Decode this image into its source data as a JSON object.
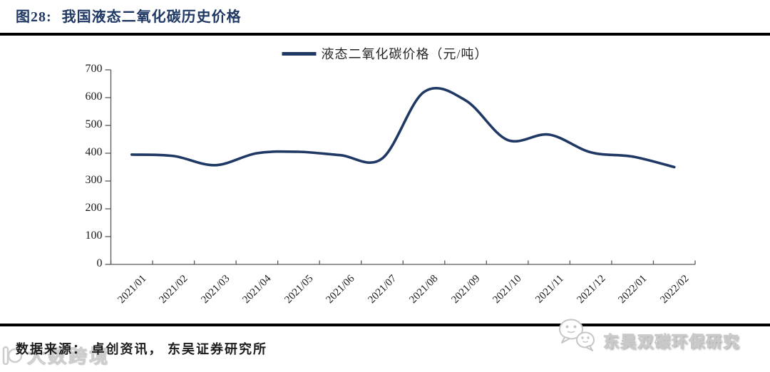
{
  "figure": {
    "label": "图28:",
    "title": "我国液态二氧化碳历史价格"
  },
  "legend": {
    "label": "液态二氧化碳价格（元/吨）"
  },
  "chart_data": {
    "type": "line",
    "smooth": true,
    "grid": false,
    "legend_position": "top-center",
    "title": "我国液态二氧化碳历史价格",
    "xlabel": "",
    "ylabel": "",
    "ylim": [
      0,
      700
    ],
    "ytick_step": 100,
    "x": [
      "2021/01",
      "2021/02",
      "2021/03",
      "2021/04",
      "2021/05",
      "2021/06",
      "2021/07",
      "2021/08",
      "2021/09",
      "2021/10",
      "2021/11",
      "2021/12",
      "2022/01",
      "2022/02"
    ],
    "series": [
      {
        "name": "液态二氧化碳价格（元/吨）",
        "color": "#1f3864",
        "values": [
          395,
          390,
          357,
          400,
          405,
          393,
          381,
          620,
          590,
          448,
          467,
          403,
          388,
          350
        ]
      }
    ]
  },
  "footer": {
    "source": "数据来源： 卓创资讯， 东吴证券研究所",
    "brand": "东吴双碳环保研究"
  },
  "watermark": {
    "text": "大数跨境"
  },
  "icons": {
    "brand_logo": "wechat-bubbles-icon",
    "watermark_logo": "watermark-logo-icon"
  },
  "colors": {
    "accent": "#1f3864",
    "axis": "#595959",
    "title": "#1f3864",
    "rule": "#000000"
  }
}
